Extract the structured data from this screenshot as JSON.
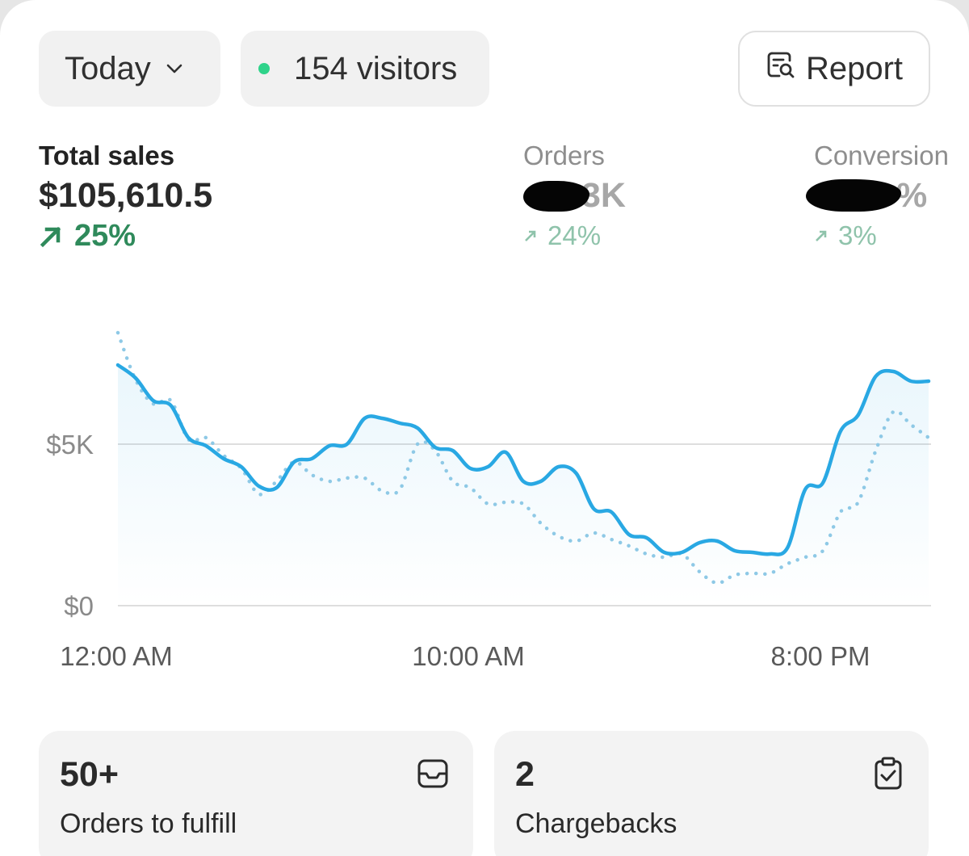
{
  "filters": {
    "date_label": "Today",
    "visitors_label": "154 visitors",
    "visitors_dot_color": "#2fd38a",
    "report_label": "Report"
  },
  "metrics": {
    "total_sales": {
      "label": "Total sales",
      "value": "$105,610.5",
      "delta": "25%"
    },
    "orders": {
      "label": "Orders",
      "value_visible": "3K",
      "delta": "24%"
    },
    "conversion": {
      "label": "Conversion",
      "value_visible": "%",
      "delta": "3%"
    }
  },
  "colors": {
    "accent_line": "#29a8e3",
    "positive": "#2f8a5b",
    "positive_muted": "#8fc3ab"
  },
  "chart_data": {
    "type": "line",
    "y_ticks": [
      "$5K",
      "$0"
    ],
    "x_ticks": [
      "12:00 AM",
      "10:00 AM",
      "8:00 PM"
    ],
    "ylim": [
      0,
      10000
    ],
    "grid": true,
    "series": [
      {
        "style": "solid",
        "x_hours": [
          0,
          0.5,
          1,
          1.5,
          2,
          2.5,
          3,
          3.5,
          4,
          4.5,
          5,
          5.5,
          6,
          6.5,
          7,
          7.5,
          8,
          8.5,
          9,
          9.5,
          10,
          10.5,
          11,
          11.5,
          12,
          12.5,
          13,
          13.5,
          14,
          14.5,
          15,
          15.5,
          16,
          16.5,
          17,
          17.5,
          18,
          18.5,
          19,
          19.5,
          20,
          20.5,
          21,
          21.5,
          22,
          22.5,
          23
        ],
        "values": [
          7450,
          7050,
          6350,
          6200,
          5200,
          4950,
          4550,
          4300,
          3700,
          3650,
          4450,
          4550,
          4950,
          5000,
          5800,
          5800,
          5650,
          5500,
          4900,
          4800,
          4250,
          4300,
          4750,
          3850,
          3850,
          4300,
          4100,
          3000,
          2900,
          2200,
          2100,
          1650,
          1650,
          1950,
          2000,
          1700,
          1650,
          1600,
          1800,
          3600,
          3800,
          5400,
          5900,
          7100,
          7250,
          6950,
          6950
        ]
      },
      {
        "style": "dotted",
        "x_hours": [
          0,
          0.5,
          1,
          1.5,
          2,
          2.5,
          3,
          3.5,
          4,
          4.5,
          5,
          5.5,
          6,
          6.5,
          7,
          7.5,
          8,
          8.5,
          9,
          9.5,
          10,
          10.5,
          11,
          11.5,
          12,
          12.5,
          13,
          13.5,
          14,
          14.5,
          15,
          15.5,
          16,
          16.5,
          17,
          17.5,
          18,
          18.5,
          19,
          19.5,
          20,
          20.5,
          21,
          21.5,
          22,
          22.5,
          23
        ],
        "values": [
          8450,
          7000,
          6250,
          6350,
          5150,
          5200,
          4650,
          4250,
          3450,
          3850,
          4450,
          4050,
          3850,
          3950,
          3950,
          3550,
          3600,
          5000,
          4800,
          3850,
          3650,
          3150,
          3200,
          3150,
          2550,
          2150,
          2000,
          2250,
          2050,
          1850,
          1600,
          1500,
          1600,
          1050,
          700,
          950,
          1000,
          1000,
          1300,
          1500,
          1700,
          2900,
          3200,
          4800,
          6000,
          5600,
          5200
        ]
      }
    ]
  },
  "tiles": [
    {
      "value": "50+",
      "caption": "Orders to fulfill",
      "icon": "inbox-icon"
    },
    {
      "value": "2",
      "caption": "Chargebacks",
      "icon": "clipboard-check-icon"
    }
  ]
}
